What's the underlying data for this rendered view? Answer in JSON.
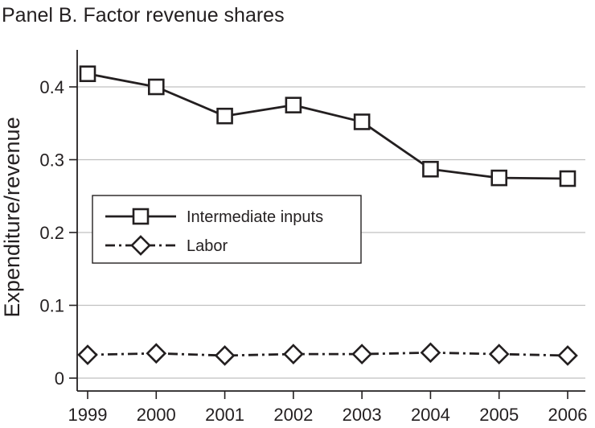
{
  "chart_data": {
    "type": "line",
    "title": "Panel B. Factor revenue shares",
    "ylabel": "Expenditure/revenue",
    "xlabel": "",
    "x": [
      1999,
      2000,
      2001,
      2002,
      2003,
      2004,
      2005,
      2006
    ],
    "x_tick_labels": [
      "1999",
      "2000",
      "2001",
      "2002",
      "2003",
      "2004",
      "2005",
      "2006"
    ],
    "ylim": [
      0,
      0.45
    ],
    "y_ticks": [
      0,
      0.1,
      0.2,
      0.3,
      0.4
    ],
    "y_tick_labels": [
      "0",
      "0.1",
      "0.2",
      "0.3",
      "0.4"
    ],
    "grid": "horizontal",
    "legend_position": "middle-left",
    "series": [
      {
        "name": "Intermediate inputs",
        "marker": "square",
        "line_style": "solid",
        "color": "#231f20",
        "values": [
          0.418,
          0.4,
          0.36,
          0.375,
          0.352,
          0.287,
          0.275,
          0.274
        ]
      },
      {
        "name": "Labor",
        "marker": "diamond",
        "line_style": "dash-dot",
        "color": "#231f20",
        "values": [
          0.032,
          0.034,
          0.031,
          0.033,
          0.033,
          0.035,
          0.033,
          0.031
        ]
      }
    ]
  }
}
